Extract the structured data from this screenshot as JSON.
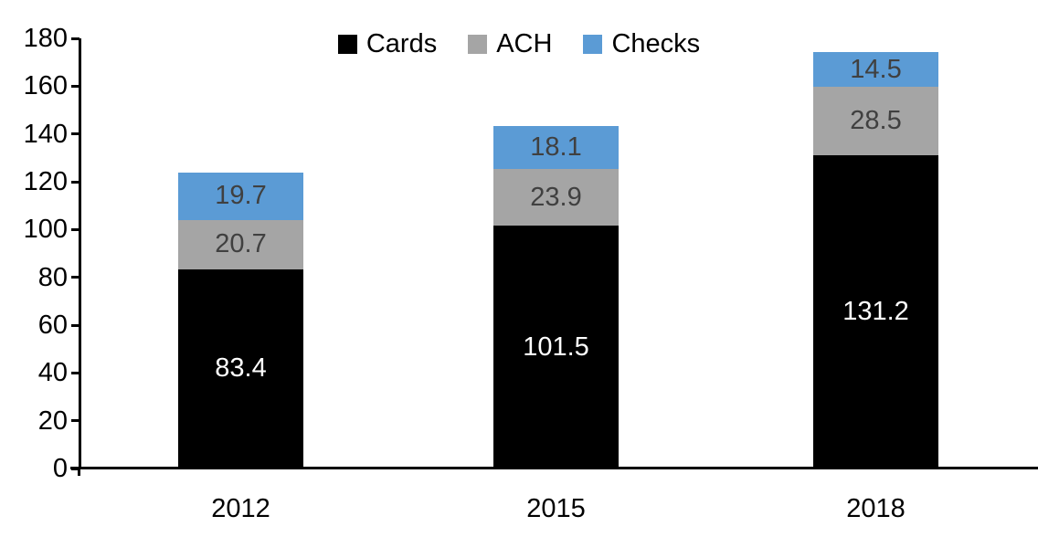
{
  "chart_data": {
    "type": "bar",
    "stacked": true,
    "title": "",
    "xlabel": "",
    "ylabel": "",
    "categories": [
      "2012",
      "2015",
      "2018"
    ],
    "series": [
      {
        "name": "Cards",
        "color": "#000000",
        "label_color": "#ffffff",
        "values": [
          83.4,
          101.5,
          131.2
        ]
      },
      {
        "name": "ACH",
        "color": "#a5a5a5",
        "label_color": "#404040",
        "values": [
          20.7,
          23.9,
          28.5
        ]
      },
      {
        "name": "Checks",
        "color": "#5b9bd5",
        "label_color": "#404040",
        "values": [
          19.7,
          18.1,
          14.5
        ]
      }
    ],
    "totals": [
      123.8,
      143.5,
      174.2
    ],
    "ylim": [
      0,
      180
    ],
    "ytick_step": 20,
    "yticks": [
      0,
      20,
      40,
      60,
      80,
      100,
      120,
      140,
      160,
      180
    ],
    "grid": false,
    "legend_position": "top",
    "data_labels": true
  },
  "legend": {
    "items": [
      {
        "label": "Cards",
        "color": "#000000"
      },
      {
        "label": "ACH",
        "color": "#a5a5a5"
      },
      {
        "label": "Checks",
        "color": "#5b9bd5"
      }
    ]
  },
  "colors": {
    "axis": "#000000",
    "background": "#ffffff"
  }
}
